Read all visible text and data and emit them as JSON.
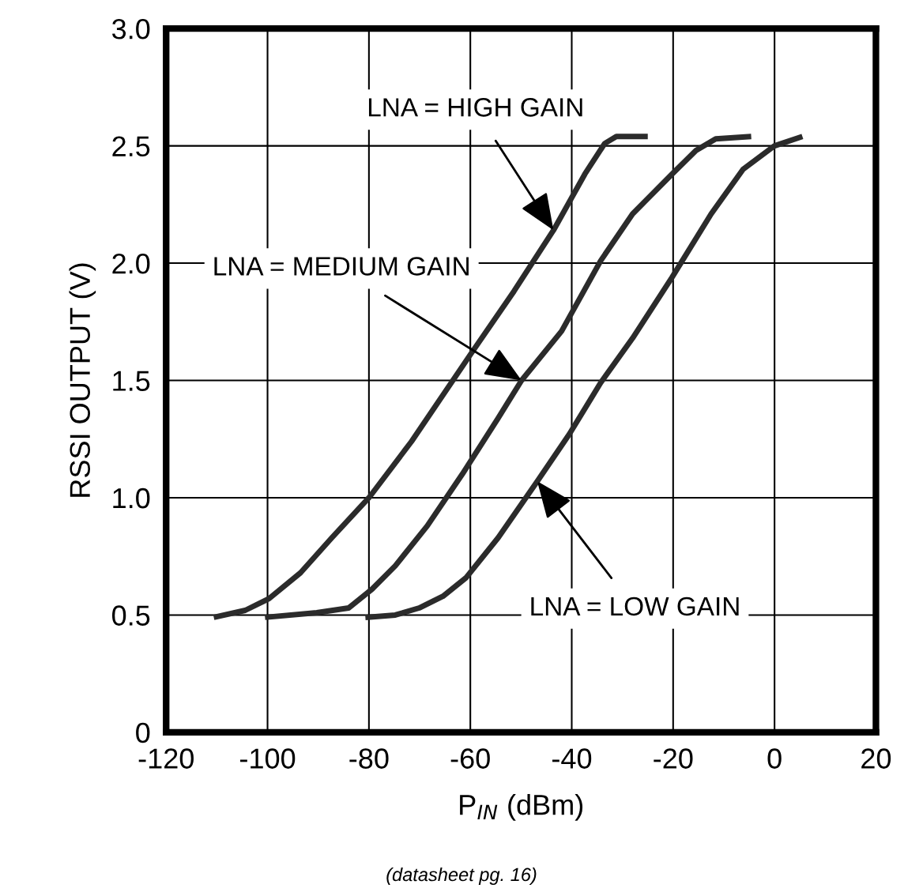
{
  "chart_data": {
    "type": "line",
    "xlabel": "P$_{IN}$ (dBm)",
    "ylabel": "RSSI OUTPUT (V)",
    "xlim": [
      -120,
      20
    ],
    "xticks": [
      -120,
      -100,
      -80,
      -60,
      -40,
      -20,
      0,
      20
    ],
    "ylim": [
      0,
      3.0
    ],
    "yticks": [
      {
        "value": 0,
        "label": "0"
      },
      {
        "value": 0.5,
        "label": "0.5"
      },
      {
        "value": 1.0,
        "label": "1.0"
      },
      {
        "value": 1.5,
        "label": "1.5"
      },
      {
        "value": 2.0,
        "label": "2.0"
      },
      {
        "value": 2.5,
        "label": "2.5"
      },
      {
        "value": 3.0,
        "label": "3.0"
      }
    ],
    "grid": true,
    "legend": false,
    "marker": "none",
    "line_style": "solid",
    "series": [
      {
        "color": "#2b2b2b",
        "x": [
          -110.6,
          -104.4,
          -99.7,
          -93.5,
          -87.3,
          -80,
          -71.6,
          -60,
          -51.4,
          -43.6,
          -37.4,
          -33.5,
          -31.2,
          -28.8,
          -25
        ],
        "values": [
          0.49,
          0.52,
          0.57,
          0.68,
          0.83,
          1.0,
          1.24,
          1.61,
          1.88,
          2.14,
          2.38,
          2.51,
          2.54,
          2.54,
          2.54
        ]
      },
      {
        "color": "#2b2b2b",
        "x": [
          -100.5,
          -90.3,
          -84,
          -79.4,
          -74.8,
          -68.5,
          -61.6,
          -54.5,
          -49.9,
          -42,
          -34.3,
          -28,
          -20.2,
          -15.5,
          -11.6,
          -4.6
        ],
        "values": [
          0.49,
          0.51,
          0.53,
          0.61,
          0.71,
          0.88,
          1.1,
          1.34,
          1.5,
          1.71,
          2.01,
          2.21,
          2.38,
          2.48,
          2.53,
          2.54
        ]
      },
      {
        "color": "#2b2b2b",
        "x": [
          -80.7,
          -74.8,
          -70.1,
          -65.4,
          -60.8,
          -54.5,
          -46.8,
          -40.5,
          -34.3,
          -28,
          -20.2,
          -12.5,
          -6.2,
          0,
          5.5
        ],
        "values": [
          0.49,
          0.5,
          0.53,
          0.58,
          0.66,
          0.83,
          1.07,
          1.27,
          1.49,
          1.68,
          1.94,
          2.21,
          2.4,
          2.5,
          2.54
        ]
      }
    ],
    "annotations": [
      {
        "text": "LNA = HIGH GAIN",
        "x": -43.6,
        "y": 2.14
      },
      {
        "text": "LNA = MEDIUM GAIN",
        "x": -49.9,
        "y": 1.5
      },
      {
        "text": "LNA = LOW GAIN",
        "x": -46.8,
        "y": 1.07
      },
      "(datasheet pg. 16)"
    ]
  }
}
